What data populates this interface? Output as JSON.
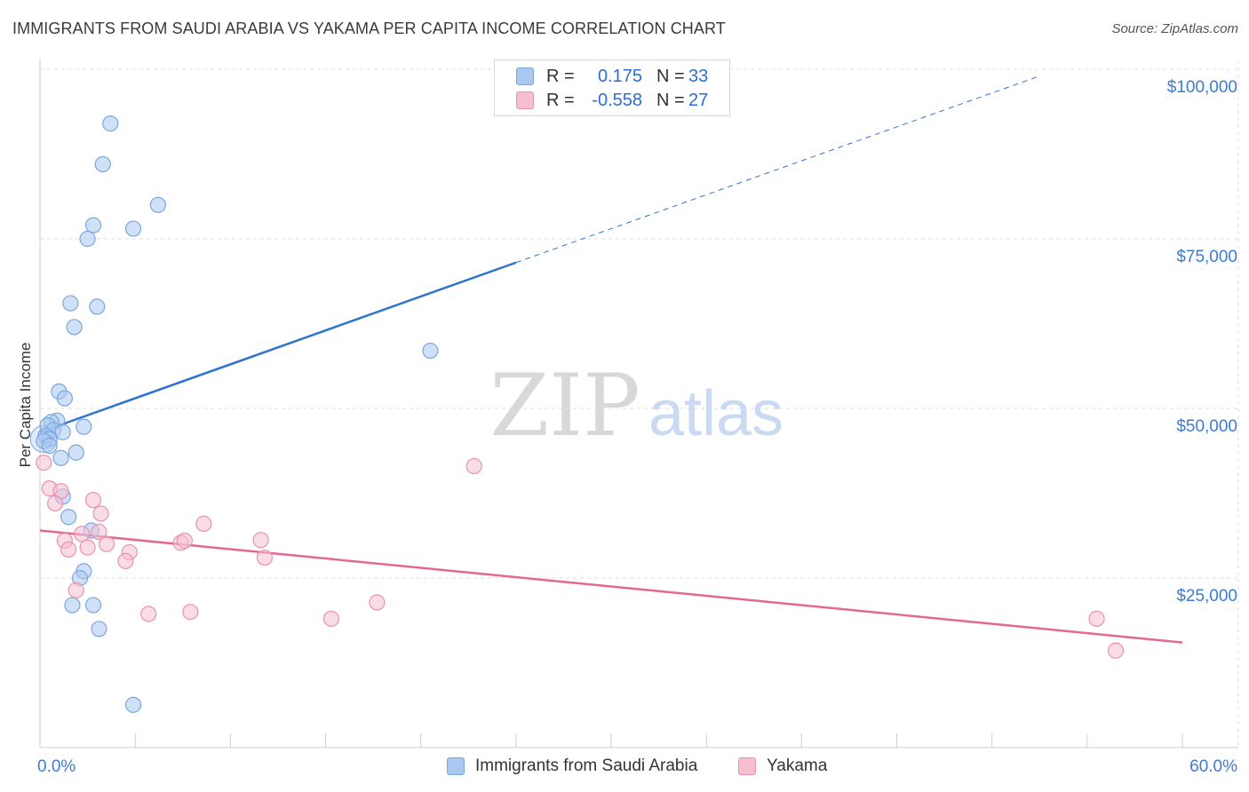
{
  "title": "IMMIGRANTS FROM SAUDI ARABIA VS YAKAMA PER CAPITA INCOME CORRELATION CHART",
  "source": "Source: ZipAtlas.com",
  "colors": {
    "blue_fill": "#aac8f0",
    "blue_stroke": "#7aa6de",
    "blue_line": "#2f73d1",
    "pink_fill": "#f6bfd0",
    "pink_stroke": "#e892b0",
    "pink_line": "#e36894",
    "axis_label": "#3c7bd4",
    "grid": "#dcdcdc"
  },
  "legend_top": {
    "rows": [
      {
        "r_label": "R =",
        "r_value": "0.175",
        "n_label": "N =",
        "n_value": "33",
        "series": "blue"
      },
      {
        "r_label": "R =",
        "r_value": "-0.558",
        "n_label": "N =",
        "n_value": "27",
        "series": "pink"
      }
    ]
  },
  "chart_data": {
    "type": "scatter",
    "title": "IMMIGRANTS FROM SAUDI ARABIA VS YAKAMA PER CAPITA INCOME CORRELATION CHART",
    "xlabel": "",
    "ylabel": "Per Capita Income",
    "xlim": [
      0,
      60
    ],
    "ylim": [
      0,
      105000
    ],
    "x_tick_labels": [
      "0.0%",
      "60.0%"
    ],
    "y_ticks": [
      25000,
      50000,
      75000,
      100000
    ],
    "y_tick_labels": [
      "$25,000",
      "$50,000",
      "$75,000",
      "$100,000"
    ],
    "watermark": {
      "part1": "ZIP",
      "part2": "atlas"
    },
    "series": [
      {
        "name": "Immigrants from Saudi Arabia",
        "color": "blue",
        "points": [
          [
            3.7,
            92000
          ],
          [
            3.3,
            86000
          ],
          [
            6.2,
            80000
          ],
          [
            2.8,
            77000
          ],
          [
            4.9,
            76500
          ],
          [
            2.5,
            75000
          ],
          [
            1.6,
            65500
          ],
          [
            3.0,
            65000
          ],
          [
            1.8,
            62000
          ],
          [
            20.5,
            58500
          ],
          [
            1.0,
            52500
          ],
          [
            1.3,
            51500
          ],
          [
            0.9,
            48200
          ],
          [
            0.6,
            48000
          ],
          [
            0.4,
            47500
          ],
          [
            2.3,
            47300
          ],
          [
            0.7,
            46800
          ],
          [
            1.2,
            46500
          ],
          [
            0.3,
            46000
          ],
          [
            0.5,
            45500
          ],
          [
            0.2,
            45200
          ],
          [
            0.5,
            44500
          ],
          [
            1.9,
            43500
          ],
          [
            1.1,
            42700
          ],
          [
            1.2,
            37000
          ],
          [
            1.5,
            34000
          ],
          [
            2.7,
            32000
          ],
          [
            2.3,
            26000
          ],
          [
            2.1,
            25000
          ],
          [
            1.7,
            21000
          ],
          [
            2.8,
            21000
          ],
          [
            3.1,
            17500
          ],
          [
            4.9,
            6300
          ]
        ],
        "trend": {
          "x_start": 0,
          "y_start": 46500,
          "x_solid_end": 25,
          "y_solid_end": 71500,
          "x_dash_end": 52.5,
          "y_dash_end": 99000
        }
      },
      {
        "name": "Yakama",
        "color": "pink",
        "points": [
          [
            0.2,
            42000
          ],
          [
            22.8,
            41500
          ],
          [
            0.5,
            38200
          ],
          [
            1.1,
            37800
          ],
          [
            2.8,
            36500
          ],
          [
            0.8,
            36000
          ],
          [
            3.2,
            34500
          ],
          [
            8.6,
            33000
          ],
          [
            2.2,
            31500
          ],
          [
            3.1,
            31800
          ],
          [
            1.3,
            30500
          ],
          [
            3.5,
            30000
          ],
          [
            7.4,
            30200
          ],
          [
            7.6,
            30500
          ],
          [
            11.6,
            30600
          ],
          [
            1.5,
            29200
          ],
          [
            2.5,
            29500
          ],
          [
            4.7,
            28800
          ],
          [
            11.8,
            28000
          ],
          [
            4.5,
            27500
          ],
          [
            1.9,
            23200
          ],
          [
            5.7,
            19700
          ],
          [
            7.9,
            20000
          ],
          [
            15.3,
            19000
          ],
          [
            17.7,
            21400
          ],
          [
            55.5,
            19000
          ],
          [
            56.5,
            14300
          ]
        ],
        "trend": {
          "x_start": 0,
          "y_start": 32000,
          "x_end": 60,
          "y_end": 15500
        }
      }
    ]
  },
  "bottom_legend": {
    "items": [
      {
        "label": "Immigrants from Saudi Arabia",
        "series": "blue"
      },
      {
        "label": "Yakama",
        "series": "pink"
      }
    ]
  }
}
